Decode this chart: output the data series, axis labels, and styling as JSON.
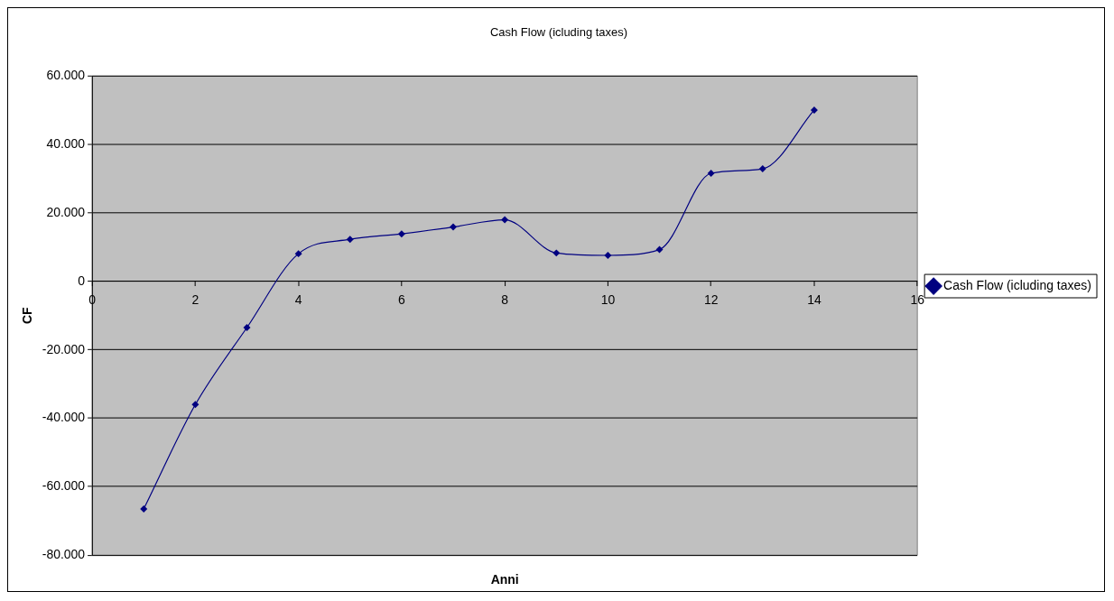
{
  "chart_data": {
    "type": "line",
    "title": "Cash Flow (icluding taxes)",
    "xlabel": "Anni",
    "ylabel": "CF",
    "x": [
      1,
      2,
      3,
      4,
      5,
      6,
      7,
      8,
      9,
      10,
      11,
      12,
      13,
      14
    ],
    "series": [
      {
        "name": "Cash Flow (icluding taxes)",
        "color": "#000080",
        "values": [
          -66500,
          -36000,
          -13500,
          8100,
          12300,
          13900,
          15900,
          18000,
          8300,
          7600,
          9300,
          31600,
          32900,
          50100
        ]
      }
    ],
    "xlim": [
      0,
      16
    ],
    "xticks": [
      0,
      2,
      4,
      6,
      8,
      10,
      12,
      14,
      16
    ],
    "ylim": [
      -80000,
      60000
    ],
    "yticks": [
      {
        "value": -80000,
        "label": "-80.000"
      },
      {
        "value": -60000,
        "label": "-60.000"
      },
      {
        "value": -40000,
        "label": "-40.000"
      },
      {
        "value": -20000,
        "label": "-20.000"
      },
      0,
      {
        "value": 20000,
        "label": "20.000"
      },
      {
        "value": 40000,
        "label": "40.000"
      },
      {
        "value": 60000,
        "label": "60.000"
      }
    ],
    "grid": "y",
    "legend": "right",
    "marker": "diamond",
    "line_style": "solid"
  }
}
